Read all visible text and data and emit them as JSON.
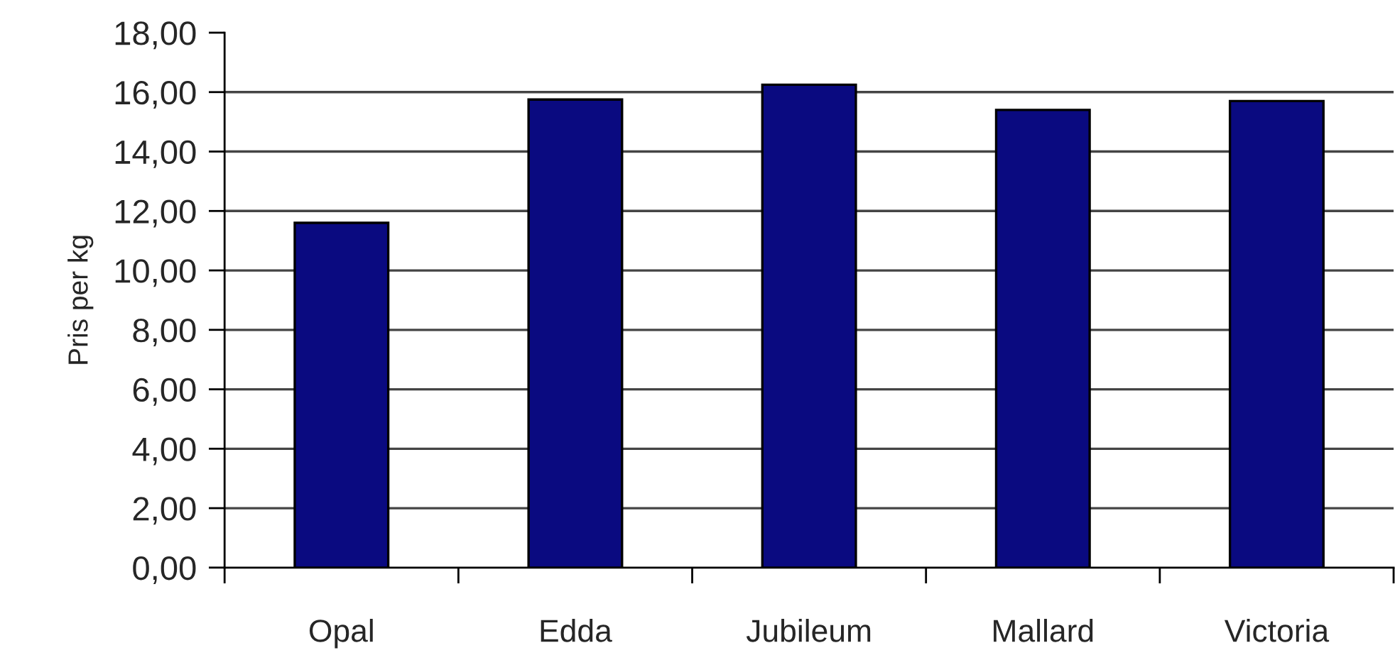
{
  "chart_data": {
    "type": "bar",
    "ylabel": "Pris per kg",
    "categories": [
      "Opal",
      "Edda",
      "Jubileum",
      "Mallard",
      "Victoria"
    ],
    "values": [
      11.6,
      15.75,
      16.25,
      15.4,
      15.7
    ],
    "color": "#0a0a80",
    "ylim": [
      0,
      18
    ],
    "yticks": [
      {
        "value": 0,
        "label": "0,00"
      },
      {
        "value": 2,
        "label": "2,00"
      },
      {
        "value": 4,
        "label": "4,00"
      },
      {
        "value": 6,
        "label": "6,00"
      },
      {
        "value": 8,
        "label": "8,00"
      },
      {
        "value": 10,
        "label": "10,00"
      },
      {
        "value": 12,
        "label": "12,00"
      },
      {
        "value": 14,
        "label": "14,00"
      },
      {
        "value": 16,
        "label": "16,00"
      },
      {
        "value": 18,
        "label": "18,00"
      }
    ],
    "grid": "y"
  }
}
